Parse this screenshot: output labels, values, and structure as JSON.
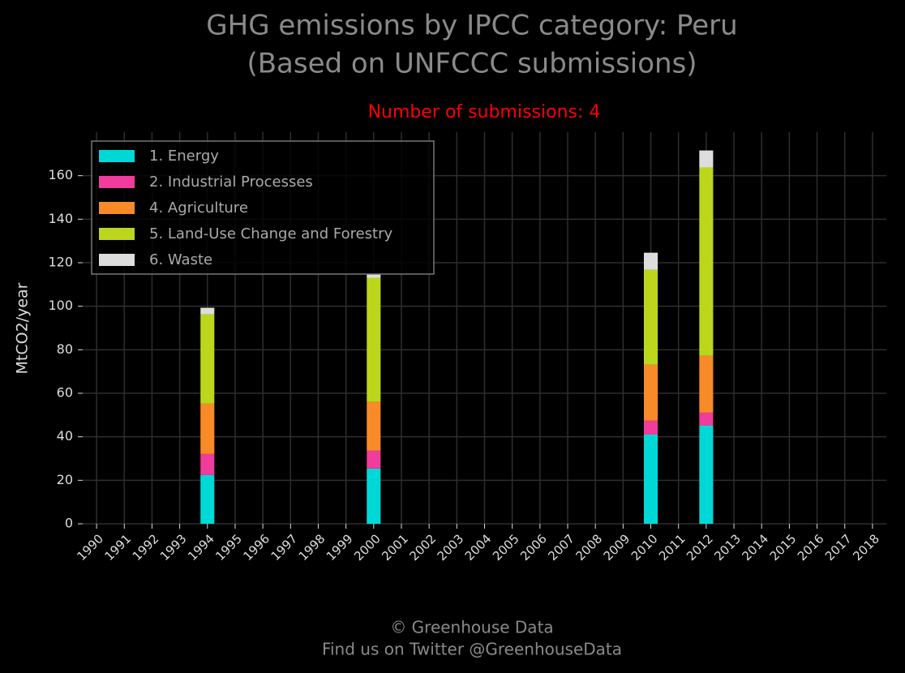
{
  "chart_data": {
    "type": "stacked_bar",
    "title": [
      "GHG emissions by IPCC category: Peru",
      "(Based on UNFCCC submissions)"
    ],
    "annotation": "Number of submissions: 4",
    "ylabel": "MtCO2/year",
    "footer": [
      "© Greenhouse Data",
      "Find us on Twitter @GreenhouseData"
    ],
    "categories": [
      "1990",
      "1991",
      "1992",
      "1993",
      "1994",
      "1995",
      "1996",
      "1997",
      "1998",
      "1999",
      "2000",
      "2001",
      "2002",
      "2003",
      "2004",
      "2005",
      "2006",
      "2007",
      "2008",
      "2009",
      "2010",
      "2011",
      "2012",
      "2013",
      "2014",
      "2015",
      "2016",
      "2017",
      "2018"
    ],
    "series": [
      {
        "name": "1. Energy",
        "color": "#00d8d8",
        "values": [
          null,
          null,
          null,
          null,
          22.4,
          null,
          null,
          null,
          null,
          null,
          25.4,
          null,
          null,
          null,
          null,
          null,
          null,
          null,
          null,
          null,
          41.0,
          null,
          45.1,
          null,
          null,
          null,
          null,
          null,
          null
        ]
      },
      {
        "name": "2. Industrial Processes",
        "color": "#f03c9c",
        "values": [
          null,
          null,
          null,
          null,
          9.7,
          null,
          null,
          null,
          null,
          null,
          8.2,
          null,
          null,
          null,
          null,
          null,
          null,
          null,
          null,
          null,
          6.4,
          null,
          6.0,
          null,
          null,
          null,
          null,
          null,
          null
        ]
      },
      {
        "name": "4. Agriculture",
        "color": "#f98a28",
        "values": [
          null,
          null,
          null,
          null,
          23.1,
          null,
          null,
          null,
          null,
          null,
          22.4,
          null,
          null,
          null,
          null,
          null,
          null,
          null,
          null,
          null,
          25.7,
          null,
          26.1,
          null,
          null,
          null,
          null,
          null,
          null
        ]
      },
      {
        "name": "5. Land-Use Change and Forestry",
        "color": "#bcd61c",
        "values": [
          null,
          null,
          null,
          null,
          41.1,
          null,
          null,
          null,
          null,
          null,
          57.1,
          null,
          null,
          null,
          null,
          null,
          null,
          null,
          null,
          null,
          43.7,
          null,
          86.6,
          null,
          null,
          null,
          null,
          null,
          null
        ]
      },
      {
        "name": "6. Waste",
        "color": "#dddddd",
        "values": [
          null,
          null,
          null,
          null,
          3.0,
          null,
          null,
          null,
          null,
          null,
          1.5,
          null,
          null,
          null,
          null,
          null,
          null,
          null,
          null,
          null,
          7.8,
          null,
          7.8,
          null,
          null,
          null,
          null,
          null,
          null
        ]
      }
    ],
    "ylim": [
      0,
      180
    ],
    "yticks": [
      0,
      20,
      40,
      60,
      80,
      100,
      120,
      140,
      160
    ],
    "grid": true,
    "legend": "upper left"
  }
}
